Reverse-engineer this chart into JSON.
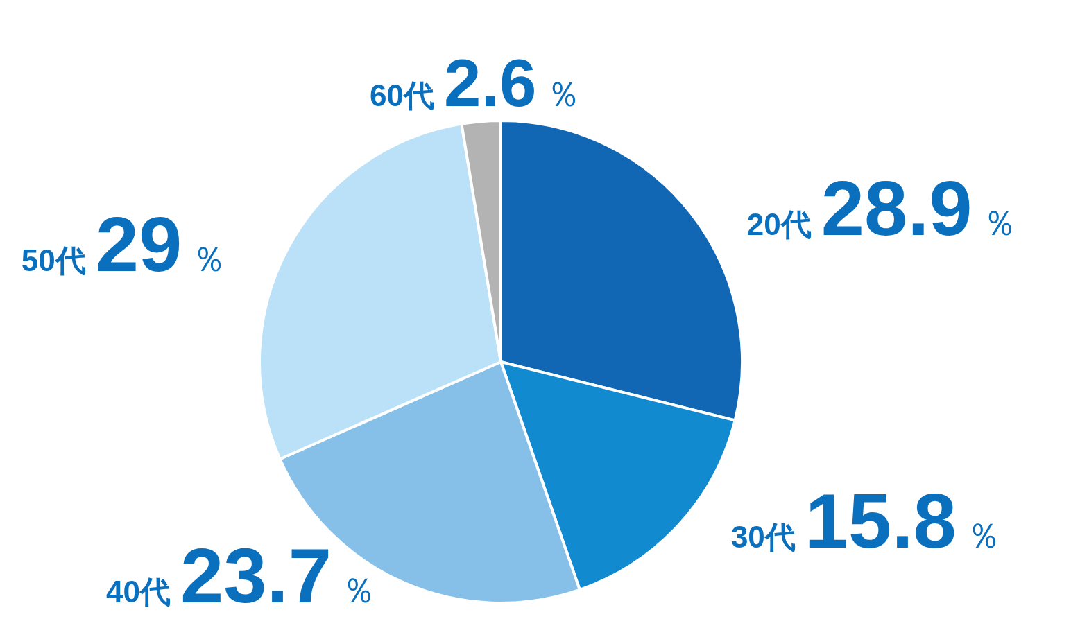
{
  "chart_data": {
    "type": "pie",
    "categories": [
      "20代",
      "30代",
      "40代",
      "50代",
      "60代"
    ],
    "values": [
      28.9,
      15.8,
      23.7,
      29,
      2.6
    ],
    "colors": [
      "#1167b4",
      "#128ad0",
      "#86c0e8",
      "#bae1f7",
      "#b3b3b3"
    ],
    "value_labels": [
      "28.9％",
      "15.8％",
      "23.7％",
      "29％",
      "2.6％"
    ],
    "legend": false
  }
}
